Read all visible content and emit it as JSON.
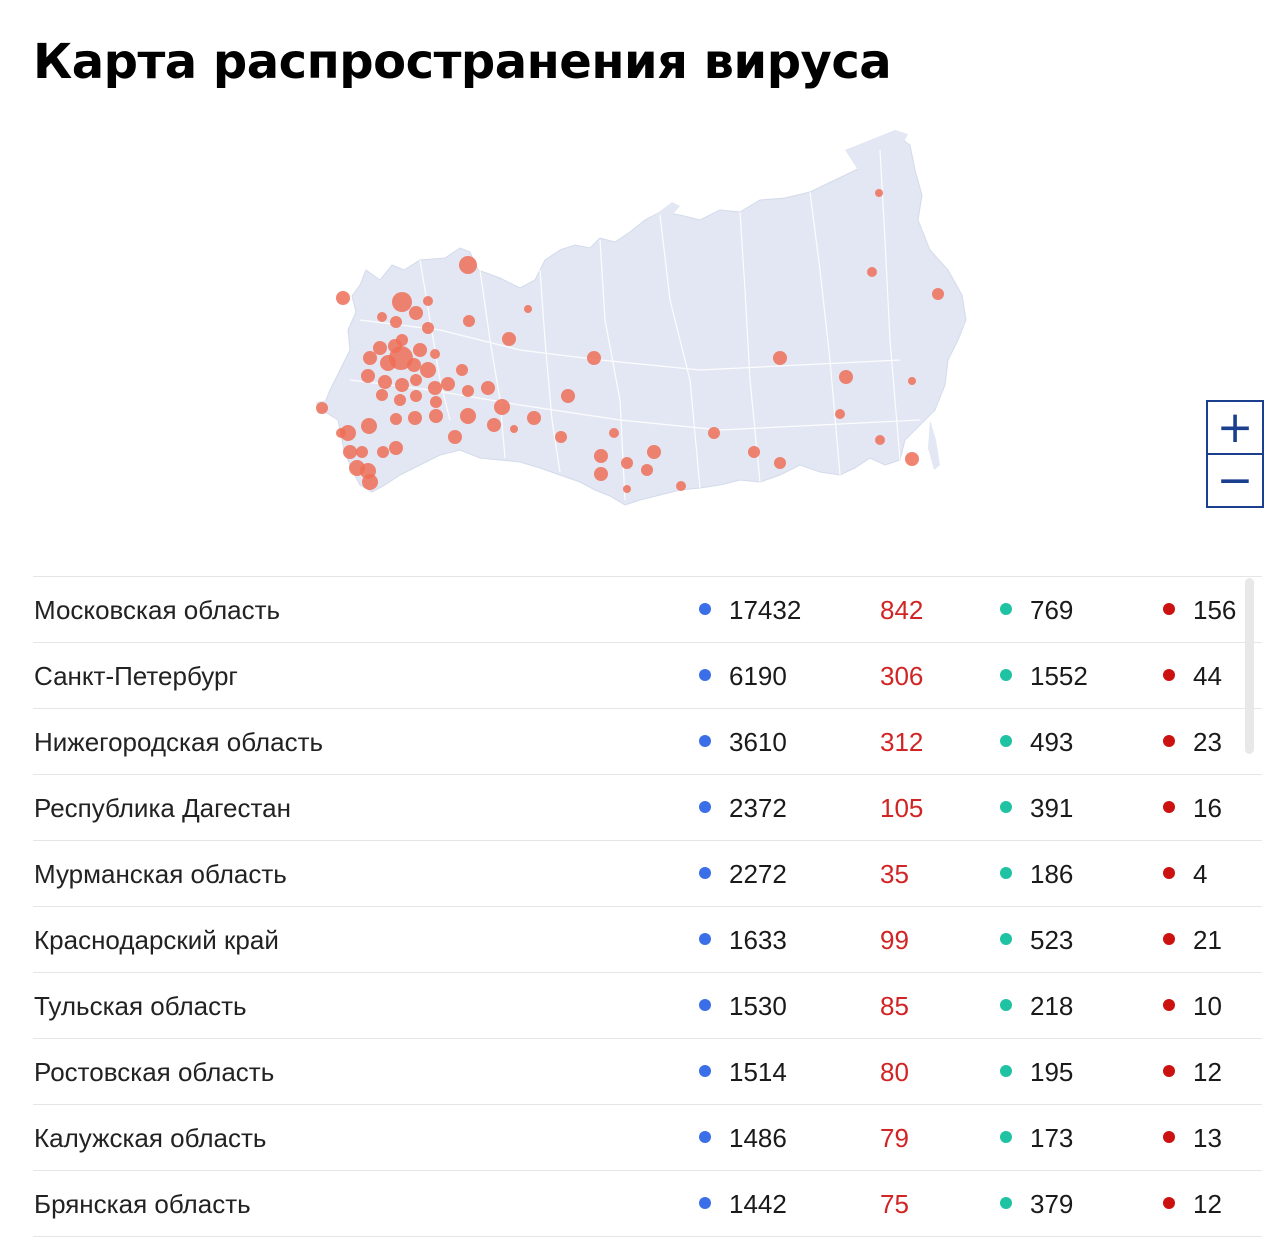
{
  "page": {
    "title": "Карта распространения вируса"
  },
  "colors": {
    "cases": "#3b6fe8",
    "new": "#d12424",
    "recovered": "#1fc2a3",
    "deaths": "#cc1111",
    "bubble": "#ef6f57",
    "land": "#e2e7f3",
    "zoom": "#1b3f8f"
  },
  "map": {
    "bubble_color": "#ef6f57",
    "land_color": "#e2e7f3",
    "border_color": "#ffffff"
  },
  "zoom": {
    "in_label": "+",
    "out_label": "−"
  },
  "regions": [
    {
      "name": "Московская область",
      "cases": "17432",
      "new": "842",
      "recovered": "769",
      "deaths": "156"
    },
    {
      "name": "Санкт-Петербург",
      "cases": "6190",
      "new": "306",
      "recovered": "1552",
      "deaths": "44"
    },
    {
      "name": "Нижегородская область",
      "cases": "3610",
      "new": "312",
      "recovered": "493",
      "deaths": "23"
    },
    {
      "name": "Республика Дагестан",
      "cases": "2372",
      "new": "105",
      "recovered": "391",
      "deaths": "16"
    },
    {
      "name": "Мурманская область",
      "cases": "2272",
      "new": "35",
      "recovered": "186",
      "deaths": "4"
    },
    {
      "name": "Краснодарский край",
      "cases": "1633",
      "new": "99",
      "recovered": "523",
      "deaths": "21"
    },
    {
      "name": "Тульская область",
      "cases": "1530",
      "new": "85",
      "recovered": "218",
      "deaths": "10"
    },
    {
      "name": "Ростовская область",
      "cases": "1514",
      "new": "80",
      "recovered": "195",
      "deaths": "12"
    },
    {
      "name": "Калужская область",
      "cases": "1486",
      "new": "79",
      "recovered": "173",
      "deaths": "13"
    },
    {
      "name": "Брянская область",
      "cases": "1442",
      "new": "75",
      "recovered": "379",
      "deaths": "12"
    }
  ]
}
